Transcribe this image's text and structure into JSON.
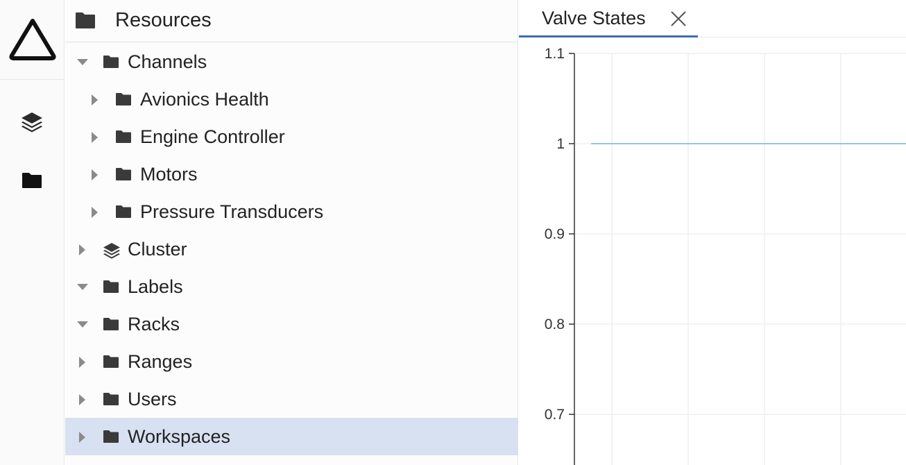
{
  "sidebar": {
    "logo_icon": "synnax-triangle-logo-icon",
    "buttons": [
      {
        "name": "cluster-layers-icon"
      },
      {
        "name": "resources-folder-icon"
      }
    ]
  },
  "resources": {
    "title": "Resources",
    "items": [
      {
        "label": "Channels",
        "icon": "folder-icon",
        "expanded": true,
        "level": 0
      },
      {
        "label": "Avionics Health",
        "icon": "folder-icon",
        "expanded": false,
        "level": 1
      },
      {
        "label": "Engine Controller",
        "icon": "folder-icon",
        "expanded": false,
        "level": 1
      },
      {
        "label": "Motors",
        "icon": "folder-icon",
        "expanded": false,
        "level": 1
      },
      {
        "label": "Pressure Transducers",
        "icon": "folder-icon",
        "expanded": false,
        "level": 1
      },
      {
        "label": "Cluster",
        "icon": "layers-icon",
        "expanded": false,
        "level": 0
      },
      {
        "label": "Labels",
        "icon": "folder-icon",
        "expanded": true,
        "level": 0
      },
      {
        "label": "Racks",
        "icon": "folder-icon",
        "expanded": true,
        "level": 0
      },
      {
        "label": "Ranges",
        "icon": "folder-icon",
        "expanded": false,
        "level": 0
      },
      {
        "label": "Users",
        "icon": "folder-icon",
        "expanded": false,
        "level": 0
      },
      {
        "label": "Workspaces",
        "icon": "folder-icon",
        "expanded": false,
        "level": 0,
        "selected": true
      }
    ]
  },
  "tab": {
    "label": "Valve States",
    "close_icon": "close-icon"
  },
  "colors": {
    "accent": "#3e6db4",
    "selected_bg": "#d8e1f1",
    "line": "#7ab3d8"
  },
  "chart_data": {
    "type": "line",
    "y_ticks": [
      "1.1",
      "1",
      "0.9",
      "0.8",
      "0.7"
    ],
    "y_tick_values": [
      1.1,
      1.0,
      0.9,
      0.8,
      0.7
    ],
    "ylim": [
      0.645,
      1.1
    ],
    "grid": true,
    "series": [
      {
        "values": [
          1,
          1
        ]
      }
    ]
  }
}
